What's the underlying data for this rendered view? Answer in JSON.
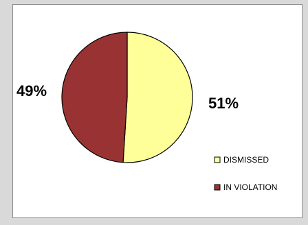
{
  "chart_data": {
    "type": "pie",
    "slices": [
      {
        "label": "DISMISSED",
        "value": 51,
        "display": "51%",
        "color": "#ffff99"
      },
      {
        "label": "IN VIOLATION",
        "value": 49,
        "display": "49%",
        "color": "#993333"
      }
    ],
    "start_angle_deg": 0,
    "direction": "clockwise",
    "legend": {
      "placement": "bottom-right"
    },
    "title": ""
  }
}
